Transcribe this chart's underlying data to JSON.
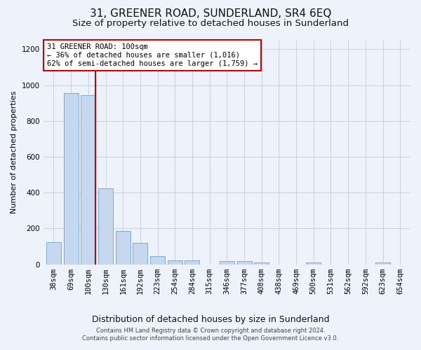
{
  "title": "31, GREENER ROAD, SUNDERLAND, SR4 6EQ",
  "subtitle": "Size of property relative to detached houses in Sunderland",
  "xlabel": "Distribution of detached houses by size in Sunderland",
  "ylabel": "Number of detached properties",
  "footer_line1": "Contains HM Land Registry data © Crown copyright and database right 2024.",
  "footer_line2": "Contains public sector information licensed under the Open Government Licence v3.0.",
  "categories": [
    "38sqm",
    "69sqm",
    "100sqm",
    "130sqm",
    "161sqm",
    "192sqm",
    "223sqm",
    "254sqm",
    "284sqm",
    "315sqm",
    "346sqm",
    "377sqm",
    "408sqm",
    "438sqm",
    "469sqm",
    "500sqm",
    "531sqm",
    "562sqm",
    "592sqm",
    "623sqm",
    "654sqm"
  ],
  "values": [
    125,
    955,
    945,
    425,
    185,
    120,
    47,
    22,
    22,
    0,
    20,
    20,
    12,
    0,
    0,
    12,
    0,
    0,
    0,
    12,
    0
  ],
  "bar_color": "#c5d8f0",
  "bar_edge_color": "#7aaad0",
  "highlight_index": 2,
  "highlight_line_color": "#cc0000",
  "annotation_text": "31 GREENER ROAD: 100sqm\n← 36% of detached houses are smaller (1,016)\n62% of semi-detached houses are larger (1,759) →",
  "annotation_box_color": "#ffffff",
  "annotation_box_edge_color": "#cc0000",
  "ylim": [
    0,
    1250
  ],
  "yticks": [
    0,
    200,
    400,
    600,
    800,
    1000,
    1200
  ],
  "bg_color": "#eef2fb",
  "plot_bg_color": "#eef2fb",
  "title_fontsize": 11,
  "subtitle_fontsize": 9.5,
  "xlabel_fontsize": 9,
  "ylabel_fontsize": 8,
  "tick_fontsize": 7.5,
  "footer_fontsize": 6,
  "annotation_fontsize": 7.5
}
